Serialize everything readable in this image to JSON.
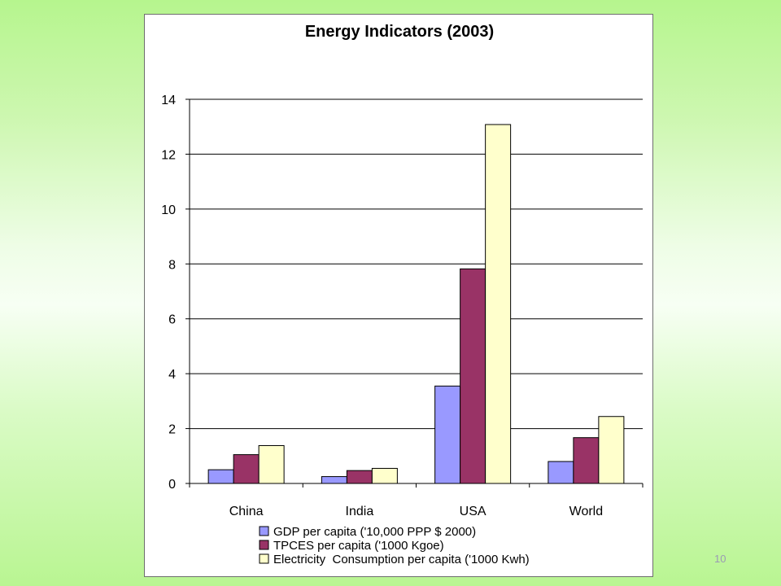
{
  "slide": {
    "page_number": "10"
  },
  "colors": {
    "gdp": "#9999ff",
    "tpces": "#993366",
    "electricity": "#ffffcc",
    "background_green": "#b6f58e"
  },
  "chart_data": {
    "type": "bar",
    "title": "Energy Indicators (2003)",
    "xlabel": "",
    "ylabel": "",
    "categories": [
      "China",
      "India",
      "USA",
      "World"
    ],
    "series": [
      {
        "name": "GDP per capita ('10,000 PPP $ 2000)",
        "values": [
          0.5,
          0.25,
          3.55,
          0.8
        ],
        "color": "#9999ff"
      },
      {
        "name": "TPCES per capita ('1000 Kgoe)",
        "values": [
          1.05,
          0.47,
          7.82,
          1.67
        ],
        "color": "#993366"
      },
      {
        "name": "Electricity  Consumption per capita ('1000 Kwh)",
        "values": [
          1.38,
          0.55,
          13.08,
          2.44
        ],
        "color": "#ffffcc"
      }
    ],
    "ylim": [
      0,
      14
    ],
    "yticks": [
      "0",
      "2",
      "4",
      "6",
      "8",
      "10",
      "12",
      "14"
    ],
    "grid": true,
    "legend_position": "bottom"
  }
}
